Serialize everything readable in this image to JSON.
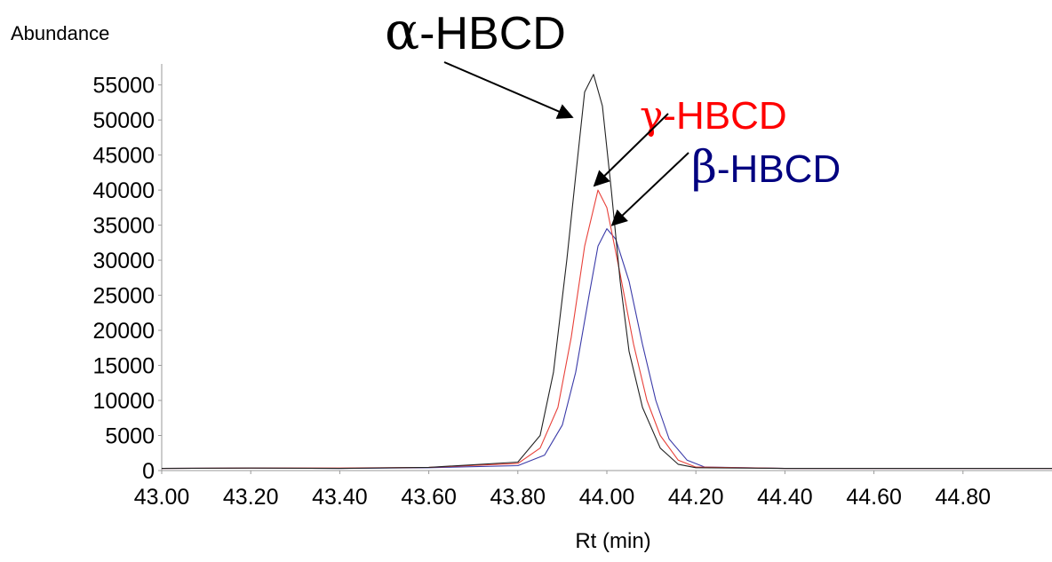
{
  "chart_data": {
    "type": "line",
    "ylabel": "Abundance",
    "xlabel": "Rt (min)",
    "xlim": [
      43.0,
      45.0
    ],
    "ylim": [
      0,
      58000
    ],
    "x_ticks": [
      43.0,
      43.2,
      43.4,
      43.6,
      43.8,
      44.0,
      44.2,
      44.4,
      44.6,
      44.8
    ],
    "x_tick_labels": [
      "43.00",
      "43.20",
      "43.40",
      "43.60",
      "43.80",
      "44.00",
      "44.20",
      "44.40",
      "44.60",
      "44.80"
    ],
    "y_ticks": [
      0,
      5000,
      10000,
      15000,
      20000,
      25000,
      30000,
      35000,
      40000,
      45000,
      50000,
      55000
    ],
    "y_tick_labels": [
      "0",
      "5000",
      "10000",
      "15000",
      "20000",
      "25000",
      "30000",
      "35000",
      "40000",
      "45000",
      "50000",
      "55000"
    ],
    "series": [
      {
        "name": "α-HBCD",
        "color": "#222222",
        "peak": {
          "x": 43.97,
          "y": 56500
        },
        "points": [
          [
            43.0,
            300
          ],
          [
            43.2,
            350
          ],
          [
            43.4,
            300
          ],
          [
            43.6,
            450
          ],
          [
            43.8,
            1200
          ],
          [
            43.85,
            5000
          ],
          [
            43.88,
            14000
          ],
          [
            43.91,
            30000
          ],
          [
            43.93,
            42000
          ],
          [
            43.95,
            54000
          ],
          [
            43.97,
            56500
          ],
          [
            43.99,
            52000
          ],
          [
            44.01,
            40000
          ],
          [
            44.03,
            27000
          ],
          [
            44.05,
            17000
          ],
          [
            44.08,
            9000
          ],
          [
            44.12,
            3200
          ],
          [
            44.16,
            900
          ],
          [
            44.2,
            400
          ],
          [
            44.4,
            300
          ],
          [
            44.6,
            300
          ],
          [
            44.8,
            300
          ],
          [
            45.0,
            300
          ]
        ]
      },
      {
        "name": "γ-HBCD",
        "color": "#e8413a",
        "peak": {
          "x": 43.98,
          "y": 40000
        },
        "points": [
          [
            43.0,
            300
          ],
          [
            43.2,
            350
          ],
          [
            43.4,
            350
          ],
          [
            43.6,
            450
          ],
          [
            43.8,
            1000
          ],
          [
            43.85,
            3200
          ],
          [
            43.89,
            9000
          ],
          [
            43.92,
            19000
          ],
          [
            43.95,
            32000
          ],
          [
            43.98,
            40000
          ],
          [
            44.0,
            37500
          ],
          [
            44.03,
            28000
          ],
          [
            44.06,
            18000
          ],
          [
            44.09,
            10000
          ],
          [
            44.12,
            5000
          ],
          [
            44.16,
            1500
          ],
          [
            44.2,
            500
          ],
          [
            44.4,
            300
          ],
          [
            44.6,
            300
          ],
          [
            44.8,
            300
          ],
          [
            45.0,
            300
          ]
        ]
      },
      {
        "name": "β-HBCD",
        "color": "#3a3aa8",
        "peak": {
          "x": 44.0,
          "y": 34500
        },
        "points": [
          [
            43.0,
            300
          ],
          [
            43.2,
            350
          ],
          [
            43.4,
            300
          ],
          [
            43.6,
            400
          ],
          [
            43.8,
            700
          ],
          [
            43.86,
            2200
          ],
          [
            43.9,
            6500
          ],
          [
            43.93,
            14000
          ],
          [
            43.96,
            25000
          ],
          [
            43.98,
            32000
          ],
          [
            44.0,
            34500
          ],
          [
            44.02,
            33000
          ],
          [
            44.05,
            27000
          ],
          [
            44.08,
            18000
          ],
          [
            44.11,
            10000
          ],
          [
            44.14,
            4500
          ],
          [
            44.18,
            1500
          ],
          [
            44.22,
            500
          ],
          [
            44.4,
            300
          ],
          [
            44.6,
            300
          ],
          [
            44.8,
            300
          ],
          [
            45.0,
            300
          ]
        ]
      }
    ],
    "annotations": [
      {
        "greek": "α",
        "label": "-HBCD",
        "color": "#000000",
        "points_to": "α-HBCD"
      },
      {
        "greek": "γ",
        "label": "-HBCD",
        "color": "#ff0000",
        "points_to": "γ-HBCD"
      },
      {
        "greek": "β",
        "label": "-HBCD",
        "color": "#000080",
        "points_to": "β-HBCD"
      }
    ]
  }
}
